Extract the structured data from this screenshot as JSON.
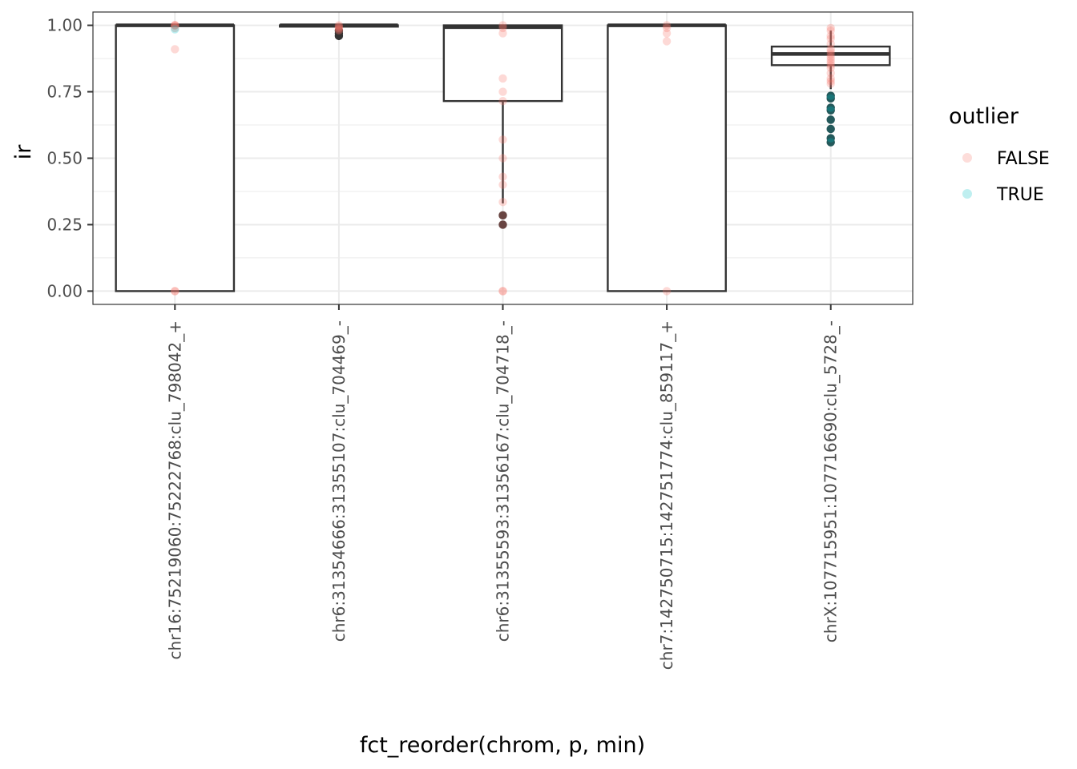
{
  "chart_data": {
    "type": "boxplot",
    "xlabel": "fct_reorder(chrom, p, min)",
    "ylabel": "ir",
    "ylim": [
      -0.05,
      1.05
    ],
    "y_ticks": [
      "0.00",
      "0.25",
      "0.50",
      "0.75",
      "1.00"
    ],
    "y_tick_values": [
      0,
      0.25,
      0.5,
      0.75,
      1.0
    ],
    "grid": true,
    "legend": {
      "title": "outlier",
      "placement": "right",
      "entries": [
        {
          "label": "FALSE",
          "color": "#F8766D"
        },
        {
          "label": "TRUE",
          "color": "#00BFC4"
        }
      ]
    },
    "colors": {
      "false": "#F8766D",
      "true": "#00BFC4",
      "box": "#333333",
      "outlier_dot": "#333333"
    },
    "categories": [
      "chr16:75219060:75222768:clu_798042_+",
      "chr6:31354666:31355107:clu_704469_-",
      "chr6:31355593:31356167:clu_704718_-",
      "chr7:142750715:142751774:clu_859117_+",
      "chrX:107715951:107716690:clu_5728_-"
    ],
    "boxes": [
      {
        "q1": 0.0,
        "median": 1.0,
        "q3": 1.0,
        "lower_whisker": 0.0,
        "upper_whisker": 1.0,
        "outliers": []
      },
      {
        "q1": 0.995,
        "median": 1.0,
        "q3": 1.0,
        "lower_whisker": 0.995,
        "upper_whisker": 1.0,
        "outliers": [
          0.96,
          0.97,
          0.98
        ]
      },
      {
        "q1": 0.715,
        "median": 0.993,
        "q3": 1.0,
        "lower_whisker": 0.33,
        "upper_whisker": 1.0,
        "outliers": [
          0.25,
          0.285
        ]
      },
      {
        "q1": 0.0,
        "median": 1.0,
        "q3": 1.0,
        "lower_whisker": 0.0,
        "upper_whisker": 1.0,
        "outliers": []
      },
      {
        "q1": 0.85,
        "median": 0.892,
        "q3": 0.92,
        "lower_whisker": 0.76,
        "upper_whisker": 0.98,
        "outliers": [
          0.56,
          0.575,
          0.61,
          0.645,
          0.68,
          0.69,
          0.725,
          0.735
        ]
      }
    ],
    "points": [
      {
        "group": 0,
        "outlier": false,
        "values": [
          1.0,
          1.0,
          1.0,
          0.99,
          0.91,
          0.0,
          0.0
        ]
      },
      {
        "group": 0,
        "outlier": true,
        "values": [
          0.985
        ]
      },
      {
        "group": 1,
        "outlier": false,
        "values": [
          1.0,
          0.995,
          0.99,
          0.985,
          0.98
        ]
      },
      {
        "group": 2,
        "outlier": false,
        "values": [
          1.0,
          0.99,
          0.97,
          0.8,
          0.75,
          0.715,
          0.57,
          0.5,
          0.43,
          0.4,
          0.335,
          0.285,
          0.25,
          0.0,
          0.0
        ]
      },
      {
        "group": 3,
        "outlier": false,
        "values": [
          1.0,
          0.99,
          0.97,
          0.94,
          0.0
        ]
      },
      {
        "group": 4,
        "outlier": false,
        "values": [
          0.99,
          0.98,
          0.96,
          0.95,
          0.93,
          0.91,
          0.9,
          0.89,
          0.88,
          0.87,
          0.86,
          0.85,
          0.84,
          0.82,
          0.8,
          0.79,
          0.78
        ]
      },
      {
        "group": 4,
        "outlier": true,
        "values": [
          0.735,
          0.725,
          0.69,
          0.68,
          0.645,
          0.61,
          0.575,
          0.56
        ]
      }
    ]
  }
}
